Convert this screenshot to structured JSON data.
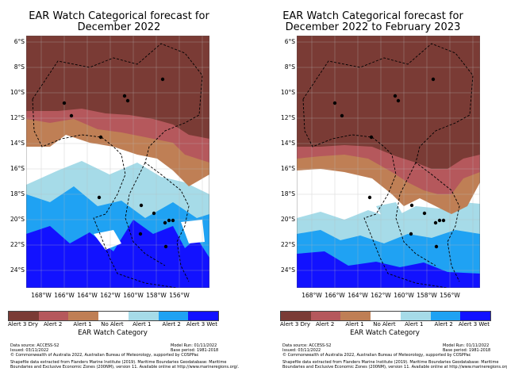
{
  "panels": [
    {
      "title_line1": "EAR Watch Categorical forecast for",
      "title_line2": "December 2022"
    },
    {
      "title_line1": "EAR Watch Categorical forecast for",
      "title_line2": "December 2022 to February 2023"
    }
  ],
  "lat_ticks": [
    "6°S",
    "8°S",
    "10°S",
    "12°S",
    "14°S",
    "16°S",
    "18°S",
    "20°S",
    "22°S",
    "24°S"
  ],
  "lon_ticks": [
    "168°W",
    "166°W",
    "164°W",
    "162°W",
    "160°W",
    "158°W",
    "156°W"
  ],
  "legend": {
    "title": "EAR Watch Category",
    "labels": [
      "Alert 3 Dry",
      "Alert 2",
      "Alert 1",
      "No Alert",
      "Alert 1",
      "Alert 2",
      "Alert 3 Wet"
    ],
    "colors": [
      "#7a3b35",
      "#b5585c",
      "#bf7f55",
      "#ffffff",
      "#a6dbe8",
      "#1fa2f3",
      "#1212ff"
    ]
  },
  "footer": {
    "data_source": "Data source: ACCESS-S2",
    "issued": "Issued: 03/11/2022",
    "model_run": "Model Run: 01/11/2022",
    "base_period": "Base period: 1981-2018",
    "copyright": "© Commonwealth of Australia 2022, Australian Bureau of Meteorology, supported by COSPPac",
    "shapefile1": "Shapefile data extracted from Flanders Marine Institute (2019). Maritime Boundaries Geodatabase: Maritime",
    "shapefile2": "Boundaries and Exclusive Economic Zones (200NM), version 11. Available online at http://www.marineregions.org/."
  }
}
